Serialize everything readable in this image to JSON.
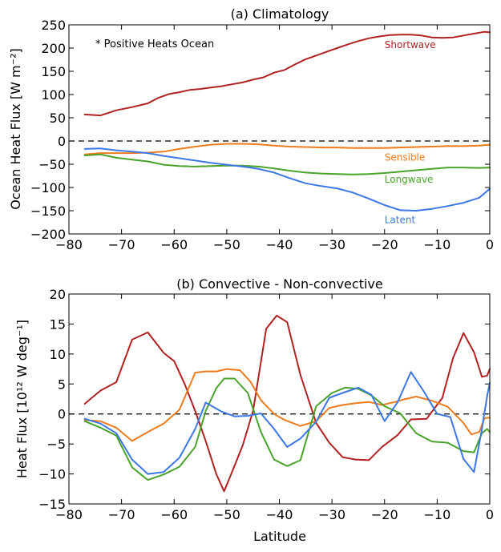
{
  "chart_data": [
    {
      "type": "line",
      "title": "(a) Climatology",
      "xlabel": "",
      "ylabel": "Ocean Heat Flux [W m⁻²]",
      "xlim": [
        -80,
        0
      ],
      "ylim": [
        -200,
        250
      ],
      "xticks": [
        -80,
        -70,
        -60,
        -50,
        -40,
        -30,
        -20,
        -10,
        0
      ],
      "yticks": [
        -200,
        -150,
        -100,
        -50,
        0,
        50,
        100,
        150,
        200,
        250
      ],
      "annotation": "* Positive Heats Ocean",
      "zero_line": true,
      "grid": false,
      "series": [
        {
          "name": "Shortwave",
          "color": "#b22222",
          "x": [
            -77,
            -74,
            -71,
            -68,
            -65,
            -63,
            -61,
            -59,
            -57,
            -55,
            -53,
            -51,
            -49,
            -47,
            -45,
            -43,
            -41,
            -39,
            -37,
            -35,
            -33,
            -31,
            -29,
            -27,
            -25,
            -23,
            -21,
            -19,
            -17,
            -15,
            -13,
            -11,
            -9,
            -7,
            -5,
            -3,
            -1,
            0
          ],
          "y": [
            57,
            55,
            66,
            73,
            81,
            93,
            101,
            105,
            110,
            112,
            115,
            118,
            122,
            126,
            132,
            137,
            147,
            153,
            165,
            176,
            184,
            192,
            200,
            208,
            215,
            221,
            225,
            228,
            229,
            229,
            227,
            223,
            222,
            223,
            227,
            231,
            235,
            234
          ]
        },
        {
          "name": "Sensible",
          "color": "#f07b1c",
          "x": [
            -77,
            -74,
            -71,
            -68,
            -65,
            -62,
            -59,
            -56,
            -53,
            -50,
            -47,
            -44,
            -41,
            -38,
            -35,
            -32,
            -29,
            -26,
            -23,
            -20,
            -17,
            -14,
            -11,
            -8,
            -5,
            -2,
            0
          ],
          "y": [
            -29,
            -26,
            -26,
            -26,
            -25,
            -23,
            -17,
            -12,
            -8,
            -6,
            -6,
            -7,
            -10,
            -12,
            -13,
            -14,
            -14,
            -15,
            -15,
            -15,
            -14,
            -13,
            -12,
            -11,
            -11,
            -10,
            -8
          ]
        },
        {
          "name": "Longwave",
          "color": "#4aa32a",
          "x": [
            -77,
            -74,
            -71,
            -68,
            -65,
            -62,
            -59,
            -56,
            -53,
            -50,
            -47,
            -44,
            -41,
            -38,
            -35,
            -32,
            -29,
            -26,
            -23,
            -20,
            -17,
            -14,
            -11,
            -8,
            -5,
            -2,
            0
          ],
          "y": [
            -31,
            -29,
            -36,
            -40,
            -44,
            -51,
            -54,
            -55,
            -54,
            -53,
            -53,
            -55,
            -59,
            -64,
            -68,
            -70,
            -71,
            -72,
            -71,
            -69,
            -66,
            -63,
            -60,
            -57,
            -57,
            -58,
            -57
          ]
        },
        {
          "name": "Latent",
          "color": "#3c78e6",
          "x": [
            -77,
            -74,
            -71,
            -68,
            -65,
            -62,
            -59,
            -56,
            -53,
            -50,
            -47,
            -44,
            -41,
            -38,
            -35,
            -32,
            -29,
            -26,
            -23,
            -20,
            -17,
            -14,
            -11,
            -8,
            -5,
            -2,
            0
          ],
          "y": [
            -17,
            -16,
            -20,
            -23,
            -26,
            -32,
            -37,
            -42,
            -47,
            -51,
            -55,
            -60,
            -68,
            -80,
            -91,
            -97,
            -102,
            -111,
            -124,
            -138,
            -149,
            -150,
            -146,
            -140,
            -133,
            -122,
            -103
          ]
        }
      ]
    },
    {
      "type": "line",
      "title": "(b) Convective - Non-convective",
      "xlabel": "Latitude",
      "ylabel": "Heat Flux [10¹² W deg⁻¹]",
      "xlim": [
        -80,
        0
      ],
      "ylim": [
        -15,
        20
      ],
      "xticks": [
        -80,
        -70,
        -60,
        -50,
        -40,
        -30,
        -20,
        -10,
        0
      ],
      "yticks": [
        -15,
        -10,
        -5,
        0,
        5,
        10,
        15,
        20
      ],
      "zero_line": true,
      "grid": false,
      "series": [
        {
          "name": "Shortwave",
          "color": "#b22222",
          "x": [
            -77,
            -74,
            -71,
            -68,
            -65,
            -62,
            -60,
            -58,
            -56,
            -54,
            -52,
            -50.5,
            -49,
            -47,
            -45,
            -42.5,
            -40.5,
            -38.5,
            -36,
            -33,
            -30.5,
            -28,
            -25.5,
            -23,
            -20.5,
            -17.5,
            -15,
            -12,
            -9,
            -7,
            -5,
            -3,
            -1.5,
            -0.5,
            0
          ],
          "y": [
            1.7,
            3.9,
            5.3,
            12.4,
            13.6,
            10.2,
            8.8,
            5.0,
            0.5,
            -4.5,
            -10.0,
            -12.9,
            -9.7,
            -5.3,
            0.5,
            14.2,
            16.4,
            15.3,
            6.5,
            -1.5,
            -4.8,
            -7.2,
            -7.6,
            -7.7,
            -5.5,
            -3.5,
            -0.9,
            -0.8,
            2.7,
            9.3,
            13.5,
            10.3,
            6.2,
            6.4,
            7.5
          ]
        },
        {
          "name": "Sensible",
          "color": "#f07b1c",
          "x": [
            -77,
            -74,
            -71,
            -68,
            -65,
            -62,
            -59,
            -56,
            -54,
            -52,
            -50,
            -47.5,
            -45.5,
            -43.5,
            -41,
            -39,
            -36,
            -33,
            -30.5,
            -28,
            -25.5,
            -23,
            -20.5,
            -18,
            -16,
            -14,
            -11,
            -8,
            -5,
            -3.5,
            -2,
            -1,
            0
          ],
          "y": [
            -1.0,
            -1.2,
            -2.3,
            -4.5,
            -3.0,
            -1.6,
            0.7,
            6.9,
            7.1,
            7.1,
            7.5,
            7.3,
            5.4,
            2.3,
            0.0,
            -1.0,
            -2.0,
            -1.2,
            1.0,
            1.5,
            1.8,
            2.0,
            1.5,
            2.0,
            2.5,
            2.9,
            2.2,
            1.2,
            -1.5,
            -3.4,
            -3.0,
            -0.7,
            -0.6
          ]
        },
        {
          "name": "Longwave",
          "color": "#4aa32a",
          "x": [
            -77,
            -74,
            -71,
            -68,
            -65,
            -62,
            -59,
            -56,
            -54,
            -52,
            -50.5,
            -48.5,
            -46,
            -43.5,
            -41,
            -38.5,
            -36,
            -33,
            -30,
            -27.5,
            -25,
            -22.5,
            -20,
            -17,
            -14,
            -11,
            -8,
            -5,
            -3,
            -1.5,
            -0.5,
            0
          ],
          "y": [
            -1.2,
            -2.3,
            -3.6,
            -8.9,
            -11.0,
            -10.1,
            -8.8,
            -5.5,
            0.5,
            4.3,
            5.9,
            5.9,
            3.5,
            -3.0,
            -7.6,
            -8.7,
            -7.7,
            1.3,
            3.5,
            4.4,
            4.2,
            3.1,
            1.3,
            0.1,
            -3.2,
            -4.6,
            -4.8,
            -6.2,
            -6.4,
            -3.2,
            -2.5,
            -3.0
          ]
        },
        {
          "name": "Latent",
          "color": "#3c78e6",
          "x": [
            -77,
            -74,
            -71,
            -68,
            -65,
            -62,
            -59,
            -56,
            -54,
            -51,
            -48.5,
            -46,
            -43.5,
            -41,
            -38.5,
            -36,
            -33,
            -30.5,
            -28,
            -25,
            -22.5,
            -20,
            -17.5,
            -15,
            -12.5,
            -10,
            -7.5,
            -5,
            -3,
            -1.5,
            -0.5,
            0
          ],
          "y": [
            -0.8,
            -1.6,
            -3.2,
            -7.6,
            -10.0,
            -9.7,
            -7.3,
            -2.5,
            1.9,
            0.4,
            -0.4,
            -0.3,
            0.1,
            -2.5,
            -5.5,
            -4.1,
            -1.3,
            2.7,
            3.5,
            4.4,
            3.2,
            -1.2,
            2.0,
            7.0,
            3.7,
            0.0,
            -0.5,
            -7.5,
            -9.7,
            -2.5,
            3.0,
            5.2
          ]
        }
      ]
    }
  ]
}
